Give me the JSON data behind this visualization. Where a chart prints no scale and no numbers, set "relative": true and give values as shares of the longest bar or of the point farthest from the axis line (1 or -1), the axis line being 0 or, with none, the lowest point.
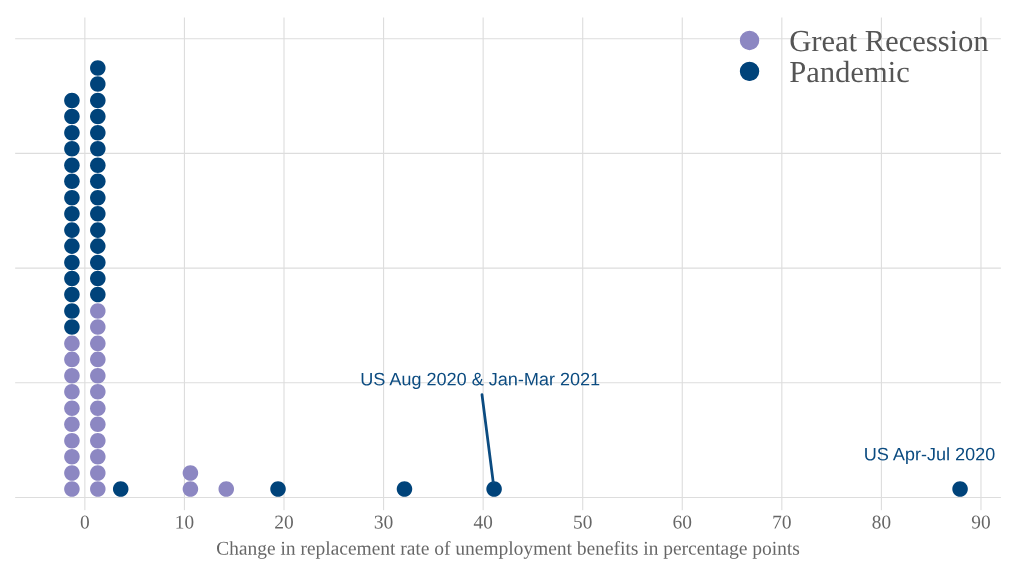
{
  "chart_data": {
    "type": "scatter",
    "relative": true,
    "xlabel": "Change in replacement rate of unemployment benefits in percentage points",
    "xlim": [
      -7,
      92
    ],
    "xticks": [
      0,
      10,
      20,
      30,
      40,
      50,
      60,
      70,
      80,
      90
    ],
    "grid": true,
    "legend": "top right",
    "marker": "circle",
    "series": [
      {
        "name": "Great Recession",
        "color": "#8c87c2",
        "x": [
          -1.3,
          -1.3,
          -1.3,
          -1.3,
          -1.3,
          -1.3,
          -1.3,
          -1.3,
          -1.3,
          -1.3,
          1.3,
          1.3,
          1.3,
          1.3,
          1.3,
          1.3,
          1.3,
          1.3,
          1.3,
          1.3,
          1.3,
          1.3,
          10.6,
          10.6,
          14.2
        ],
        "values": [
          0,
          0.038,
          0.077,
          0.115,
          0.154,
          0.192,
          0.231,
          0.269,
          0.308,
          0.346,
          0,
          0.038,
          0.077,
          0.115,
          0.154,
          0.192,
          0.231,
          0.269,
          0.308,
          0.346,
          0.385,
          0.423,
          0,
          0.038,
          0
        ]
      },
      {
        "name": "Pandemic",
        "color": "#00437a",
        "x": [
          -1.3,
          -1.3,
          -1.3,
          -1.3,
          -1.3,
          -1.3,
          -1.3,
          -1.3,
          -1.3,
          -1.3,
          -1.3,
          -1.3,
          -1.3,
          -1.3,
          -1.3,
          1.3,
          1.3,
          1.3,
          1.3,
          1.3,
          1.3,
          1.3,
          1.3,
          1.3,
          1.3,
          1.3,
          1.3,
          1.3,
          1.3,
          1.3,
          3.6,
          19.4,
          32.1,
          41.1,
          87.9
        ],
        "values": [
          0.385,
          0.423,
          0.462,
          0.5,
          0.538,
          0.577,
          0.615,
          0.654,
          0.692,
          0.731,
          0.769,
          0.808,
          0.846,
          0.885,
          0.923,
          0.462,
          0.5,
          0.538,
          0.577,
          0.615,
          0.654,
          0.692,
          0.731,
          0.769,
          0.808,
          0.846,
          0.885,
          0.923,
          0.962,
          1,
          0,
          0,
          0,
          0,
          0
        ]
      }
    ],
    "annotations": [
      {
        "text": "US Aug 2020 & Jan-Mar 2021",
        "x": 41.1,
        "y": 0
      },
      {
        "text": "US Apr-Jul 2020",
        "x": 87.9,
        "y": 0
      }
    ]
  }
}
